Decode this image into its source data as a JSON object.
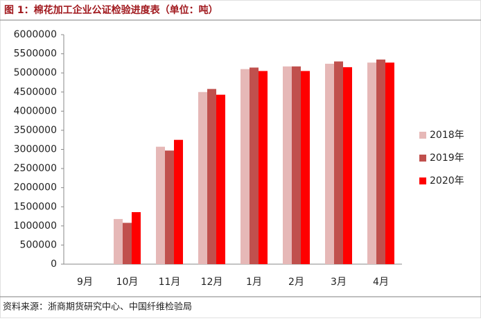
{
  "chart_data": {
    "type": "bar",
    "title": "图 1：棉花加工企业公证检验进度表（单位：吨）",
    "source": "资料来源：浙商期货研究中心、中国纤维检验局",
    "categories": [
      "9月",
      "10月",
      "11月",
      "12月",
      "1月",
      "2月",
      "3月",
      "4月"
    ],
    "series": [
      {
        "name": "2018年",
        "color": "#e6b8b7",
        "values": [
          null,
          1180000,
          3070000,
          4500000,
          5100000,
          5170000,
          5240000,
          5270000
        ]
      },
      {
        "name": "2019年",
        "color": "#c0504d",
        "values": [
          null,
          1080000,
          2970000,
          4580000,
          5140000,
          5170000,
          5300000,
          5350000
        ]
      },
      {
        "name": "2020年",
        "color": "#ff0000",
        "values": [
          null,
          1360000,
          3250000,
          4430000,
          5050000,
          5050000,
          5150000,
          5270000
        ]
      }
    ],
    "ylim": [
      0,
      6000000
    ],
    "yticks": [
      0,
      500000,
      1000000,
      1500000,
      2000000,
      2500000,
      3000000,
      3500000,
      4000000,
      4500000,
      5000000,
      5500000,
      6000000
    ],
    "grid": false
  }
}
